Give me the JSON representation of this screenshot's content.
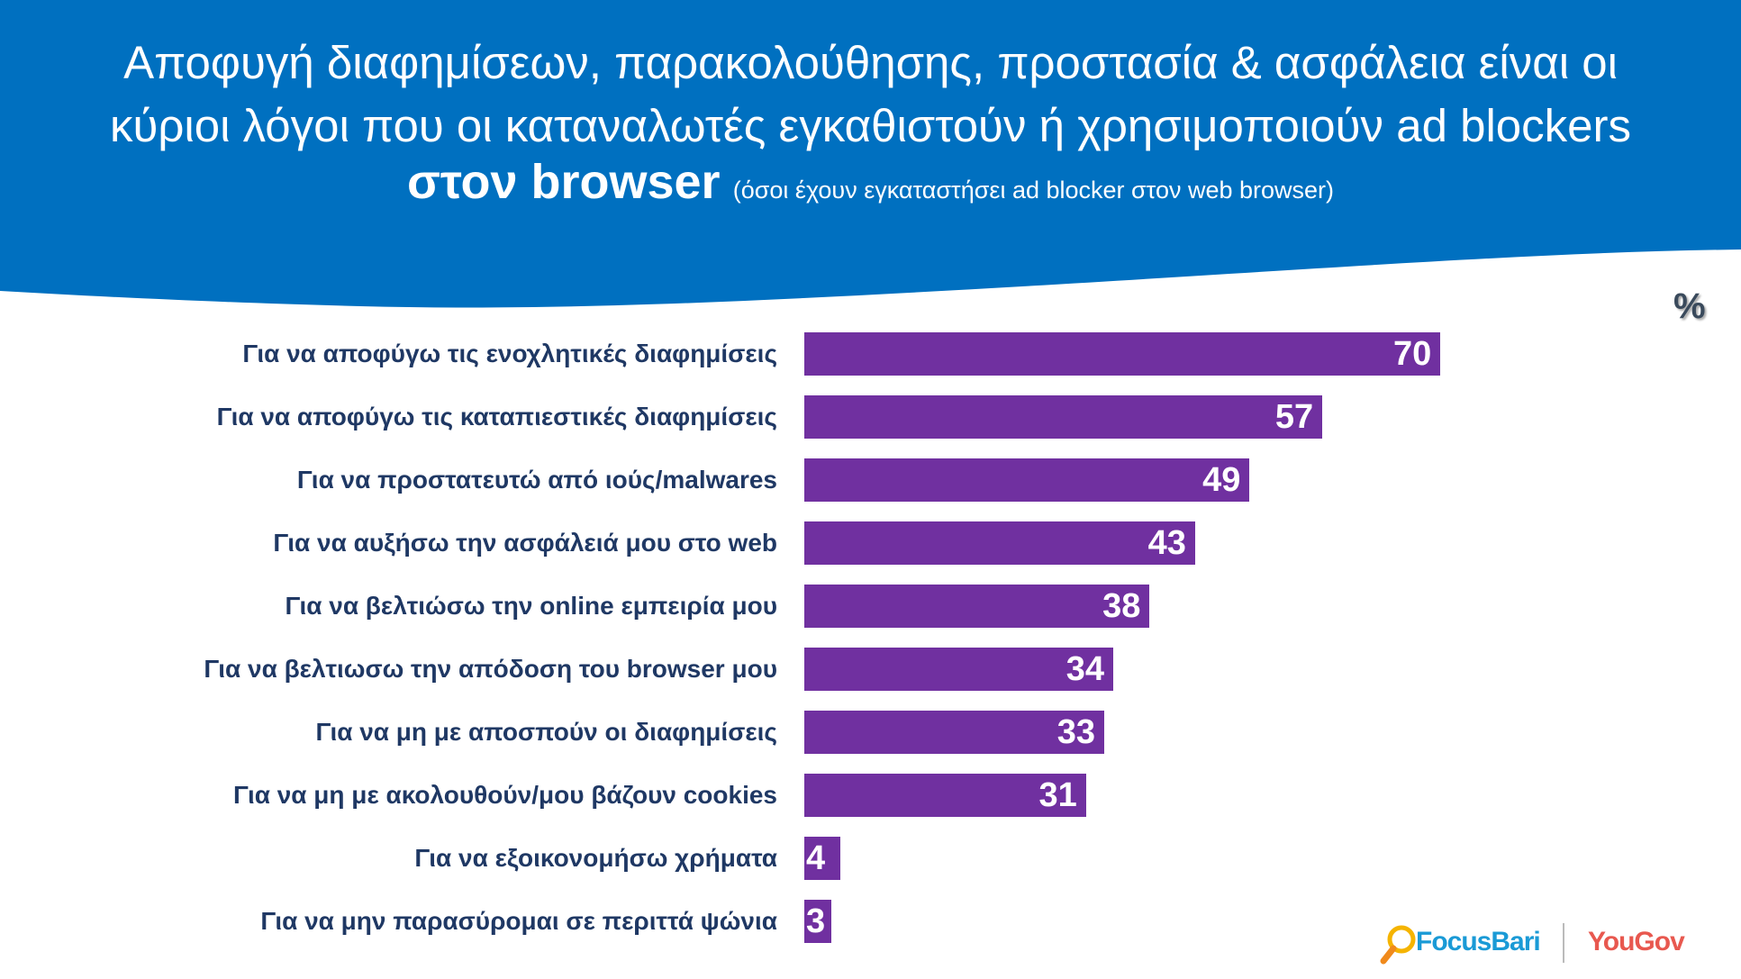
{
  "header": {
    "title_line1": "Αποφυγή διαφημίσεων, παρακολούθησης, προστασία & ασφάλεια είναι οι",
    "title_line2": "κύριοι λόγοι που οι καταναλωτές εγκαθιστούν ή χρησιμοποιούν ad blockers",
    "title_line3_bold": "στον browser",
    "subtitle": "(όσοι έχουν εγκαταστήσει ad blocker στον web browser)",
    "background_color": "#0070C0"
  },
  "unit_label": "%",
  "chart_data": {
    "type": "bar",
    "orientation": "horizontal",
    "categories": [
      "Για να αποφύγω τις ενοχλητικές διαφημίσεις",
      "Για να αποφύγω τις καταπιεστικές διαφημίσεις",
      "Για να προστατευτώ από ιούς/malwares",
      "Για να αυξήσω την ασφάλειά μου στο web",
      "Για να βελτιώσω την online εμπειρία μου",
      "Για να βελτιωσω την απόδοση του browser μου",
      "Για να μη με αποσπούν οι διαφημίσεις",
      "Για να μη με ακολουθούν/μου βάζουν cookies",
      "Για να εξοικονομήσω χρήματα",
      "Για να μην παρασύρομαι σε περιττά ψώνια"
    ],
    "values": [
      70,
      57,
      49,
      43,
      38,
      34,
      33,
      31,
      4,
      3
    ],
    "data_labels": [
      "70",
      "57",
      "49",
      "43",
      "38",
      "34",
      "33",
      "31",
      "4",
      "3"
    ],
    "bar_color": "#7030A0",
    "grid": false
  },
  "logos": {
    "left": "FocusBari",
    "right": "YouGov"
  }
}
